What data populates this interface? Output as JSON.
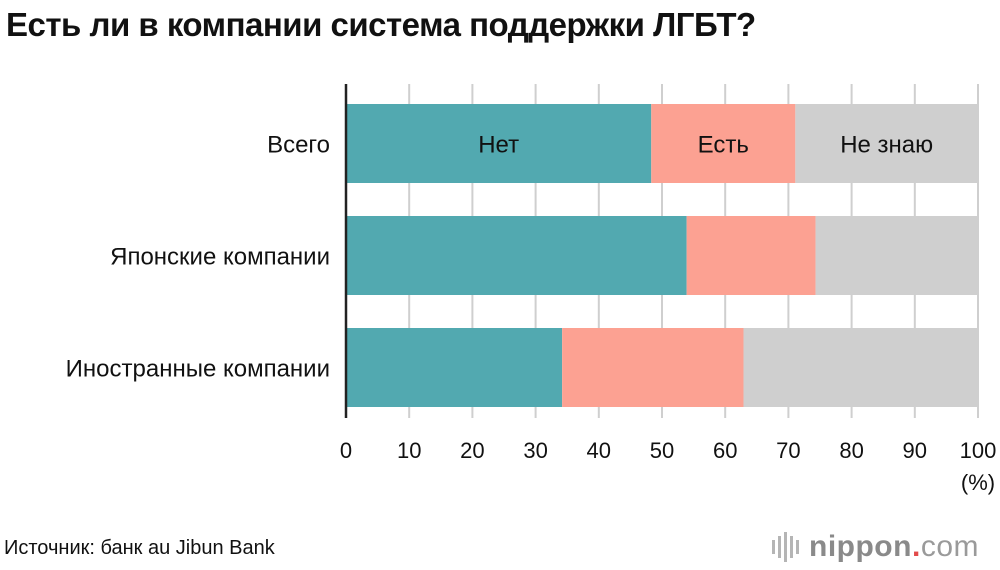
{
  "title": "Есть ли в компании система поддержки ЛГБТ?",
  "source": "Источник: банк au Jibun Bank",
  "logo": {
    "name": "nippon",
    "dot": ".",
    "tld": "com"
  },
  "colors": {
    "no": "#52a9b0",
    "yes": "#fca192",
    "dont_know": "#cfcfcf",
    "grid": "#cfcfcf",
    "axis": "#222222"
  },
  "chart_data": {
    "type": "bar",
    "orientation": "horizontal",
    "stacked": true,
    "categories": [
      "Всего",
      "Японские компании",
      "Иностранные компании"
    ],
    "series": [
      {
        "name": "Нет",
        "values": [
          48.3,
          53.9,
          34.2
        ],
        "color": "#52a9b0"
      },
      {
        "name": "Есть",
        "values": [
          22.8,
          20.4,
          28.7
        ],
        "color": "#fca192"
      },
      {
        "name": "Не знаю",
        "values": [
          28.9,
          25.7,
          37.1
        ],
        "color": "#cfcfcf"
      }
    ],
    "xlim": [
      0,
      100
    ],
    "xticks": [
      "0",
      "10",
      "20",
      "30",
      "40",
      "50",
      "60",
      "70",
      "80",
      "90",
      "100"
    ],
    "xunit": "(%)",
    "grid": true,
    "legend": "inside first bar"
  }
}
